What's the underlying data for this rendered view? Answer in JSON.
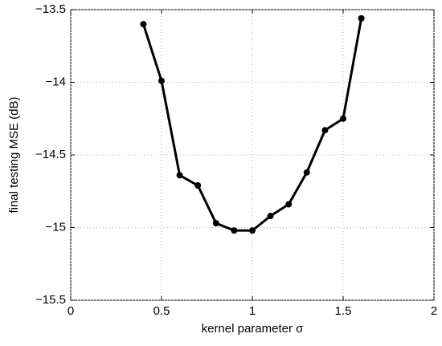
{
  "chart_data": {
    "type": "line",
    "xlabel": "kernel parameter σ",
    "ylabel": "final testing MSE (dB)",
    "x": [
      0.4,
      0.5,
      0.6,
      0.7,
      0.8,
      0.9,
      1.0,
      1.1,
      1.2,
      1.3,
      1.4,
      1.5,
      1.6
    ],
    "values": [
      -13.6,
      -13.99,
      -14.64,
      -14.71,
      -14.97,
      -15.02,
      -15.02,
      -14.92,
      -14.84,
      -14.62,
      -14.33,
      -14.25,
      -13.56
    ],
    "color": "#000000",
    "xlim": [
      0,
      2
    ],
    "xticks": [
      0,
      0.5,
      1,
      1.5,
      2
    ],
    "ylim": [
      -15.5,
      -13.5
    ],
    "yticks": [
      {
        "value": -15.5,
        "label": "−15.5"
      },
      {
        "value": -15,
        "label": "−15"
      },
      {
        "value": -14.5,
        "label": "−14.5"
      },
      {
        "value": -14,
        "label": "−14"
      },
      {
        "value": -13.5,
        "label": "−13.5"
      }
    ],
    "grid": true
  }
}
